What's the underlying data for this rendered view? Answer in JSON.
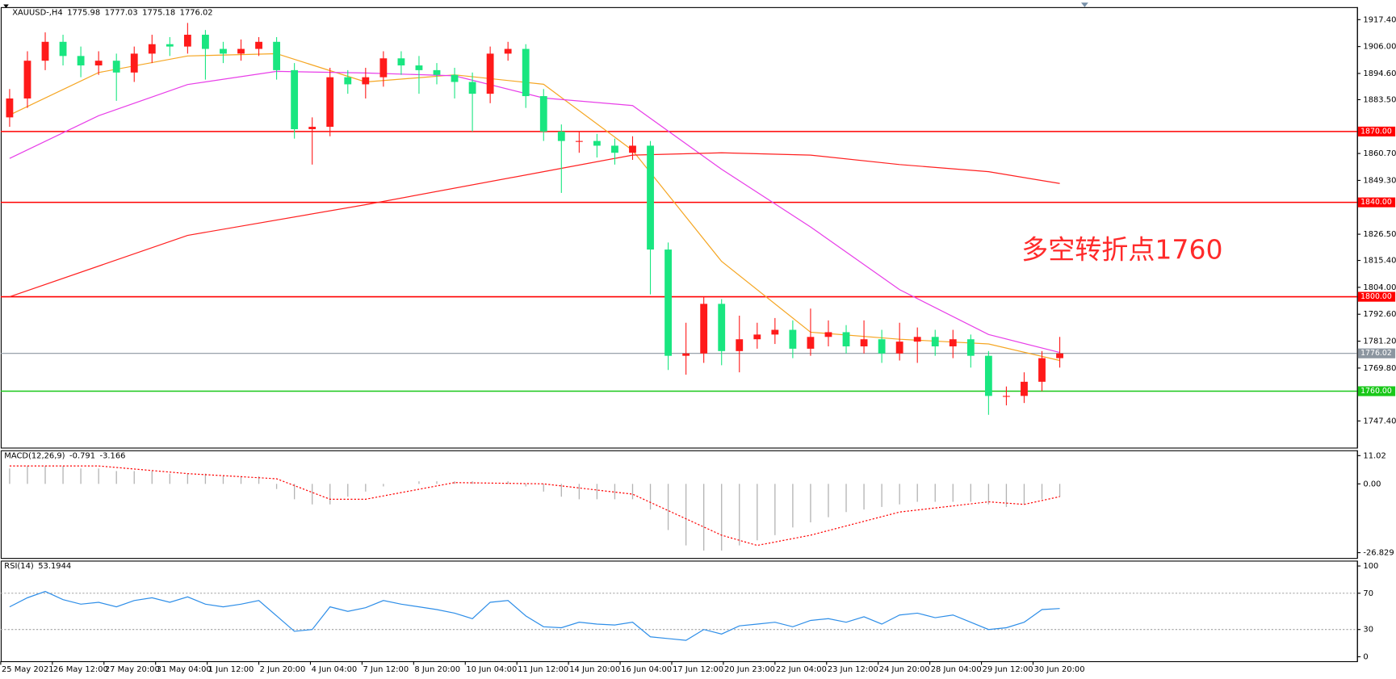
{
  "chart_data": [
    {
      "type": "candlestick",
      "title": "XAUUSD-,H4",
      "ohlc": [
        1775.98,
        1777.03,
        1775.18,
        1776.02
      ],
      "up_color": "#ff1a1a",
      "down_color": "#19e680",
      "open": [
        1876,
        1884,
        1900,
        1908,
        1902,
        1898,
        1900,
        1895,
        1903,
        1907,
        1906,
        1911,
        1905,
        1903,
        1905,
        1908,
        1896,
        1871,
        1872,
        1893,
        1890,
        1893,
        1901,
        1898,
        1896,
        1894,
        1891,
        1886,
        1903,
        1905,
        1885,
        1870,
        1866,
        1866,
        1864,
        1861,
        1864,
        1820,
        1775,
        1776,
        1797,
        1777,
        1782,
        1784,
        1786,
        1778,
        1783,
        1785,
        1779,
        1782,
        1776,
        1781,
        1783,
        1779,
        1782,
        1775,
        1758,
        1758,
        1764,
        1774
      ],
      "high": [
        1888,
        1904,
        1912,
        1911,
        1906,
        1904,
        1903,
        1906,
        1911,
        1910,
        1916,
        1913,
        1908,
        1909,
        1910,
        1910,
        1899,
        1876,
        1897,
        1896,
        1897,
        1904,
        1904,
        1902,
        1899,
        1897,
        1895,
        1906,
        1908,
        1907,
        1888,
        1873,
        1870,
        1869,
        1867,
        1868,
        1866,
        1823,
        1789,
        1800,
        1799,
        1792,
        1789,
        1791,
        1790,
        1795,
        1790,
        1788,
        1790,
        1786,
        1789,
        1787,
        1786,
        1786,
        1784,
        1777,
        1762,
        1768,
        1777,
        1783
      ],
      "low": [
        1872,
        1880,
        1896,
        1898,
        1893,
        1894,
        1883,
        1891,
        1899,
        1902,
        1903,
        1892,
        1899,
        1900,
        1902,
        1892,
        1867,
        1856,
        1868,
        1886,
        1884,
        1889,
        1894,
        1886,
        1890,
        1884,
        1870,
        1882,
        1900,
        1880,
        1866,
        1844,
        1861,
        1859,
        1856,
        1858,
        1801,
        1769,
        1767,
        1772,
        1771,
        1768,
        1778,
        1780,
        1774,
        1775,
        1779,
        1776,
        1776,
        1772,
        1773,
        1772,
        1775,
        1774,
        1770,
        1750,
        1754,
        1755,
        1760,
        1770
      ],
      "close": [
        1884,
        1900,
        1908,
        1902,
        1898,
        1900,
        1895,
        1903,
        1907,
        1906,
        1911,
        1905,
        1903,
        1905,
        1908,
        1896,
        1871,
        1872,
        1893,
        1890,
        1893,
        1901,
        1898,
        1896,
        1894,
        1891,
        1886,
        1903,
        1905,
        1885,
        1870,
        1866,
        1866,
        1864,
        1861,
        1864,
        1820,
        1775,
        1776,
        1797,
        1777,
        1782,
        1784,
        1786,
        1778,
        1783,
        1785,
        1779,
        1782,
        1776,
        1781,
        1783,
        1779,
        1782,
        1775,
        1758,
        1758,
        1764,
        1774,
        1776.02
      ],
      "series": [
        {
          "kind": "line",
          "color": "#f5a623",
          "x": [
            0,
            5,
            10,
            15,
            20,
            25,
            30,
            35,
            40,
            45,
            50,
            55,
            59
          ],
          "values": [
            1877,
            1895,
            1902,
            1903,
            1891,
            1894,
            1890,
            1862,
            1815,
            1785,
            1782,
            1780,
            1773
          ]
        },
        {
          "kind": "line",
          "color": "#e83ee8",
          "x": [
            0,
            5,
            10,
            15,
            20,
            25,
            30,
            35,
            40,
            45,
            50,
            55,
            59
          ],
          "values": [
            1858.6,
            1876.7,
            1889.9,
            1895.5,
            1894.8,
            1893.6,
            1884.2,
            1881,
            1854,
            1829.6,
            1803,
            1784,
            1776.4
          ]
        },
        {
          "kind": "line",
          "color": "#ff2020",
          "x": [
            0,
            10,
            20,
            30,
            35,
            40,
            45,
            50,
            55,
            59
          ],
          "values": [
            1800,
            1826,
            1839,
            1853,
            1860,
            1861,
            1860,
            1856,
            1853,
            1848
          ]
        }
      ],
      "levels": [
        {
          "value": 1870,
          "label": "1870.00",
          "color": "#ff0000"
        },
        {
          "value": 1840,
          "label": "1840.00",
          "color": "#ff0000"
        },
        {
          "value": 1800,
          "label": "1800.00",
          "color": "#ff0000"
        },
        {
          "value": 1760,
          "label": "1760.00",
          "color": "#19c819"
        },
        {
          "value": 1776.02,
          "label": "1776.02",
          "color": "#8c96a0"
        }
      ],
      "annotation": "多空转折点1760",
      "xlim": [
        -0.5,
        75.7
      ],
      "ylim": [
        1736.1,
        1922.7
      ],
      "yticks": [
        {
          "value": 1917.4,
          "label": "1917.40"
        },
        {
          "value": 1906,
          "label": "1906.00"
        },
        {
          "value": 1894.6,
          "label": "1894.60"
        },
        {
          "value": 1883.5,
          "label": "1883.50"
        },
        {
          "value": 1860.7,
          "label": "1860.70"
        },
        {
          "value": 1849.3,
          "label": "1849.30"
        },
        {
          "value": 1826.5,
          "label": "1826.50"
        },
        {
          "value": 1815.4,
          "label": "1815.40"
        },
        {
          "value": 1804,
          "label": "1804.00"
        },
        {
          "value": 1792.6,
          "label": "1792.60"
        },
        {
          "value": 1781.2,
          "label": "1781.20"
        },
        {
          "value": 1769.8,
          "label": "1769.80"
        },
        {
          "value": 1747.4,
          "label": "1747.40"
        }
      ],
      "xticks": [
        {
          "value": -0.5,
          "label": "25 May 2021"
        },
        {
          "value": 2.4,
          "label": "26 May 12:00"
        },
        {
          "value": 5.3,
          "label": "27 May 20:00"
        },
        {
          "value": 8.2,
          "label": "31 May 04:00"
        },
        {
          "value": 11.1,
          "label": "1 Jun 12:00"
        },
        {
          "value": 14,
          "label": "2 Jun 20:00"
        },
        {
          "value": 16.9,
          "label": "4 Jun 04:00"
        },
        {
          "value": 19.8,
          "label": "7 Jun 12:00"
        },
        {
          "value": 22.7,
          "label": "8 Jun 20:00"
        },
        {
          "value": 25.6,
          "label": "10 Jun 04:00"
        },
        {
          "value": 28.5,
          "label": "11 Jun 12:00"
        },
        {
          "value": 31.4,
          "label": "14 Jun 20:00"
        },
        {
          "value": 34.3,
          "label": "16 Jun 04:00"
        },
        {
          "value": 37.2,
          "label": "17 Jun 12:00"
        },
        {
          "value": 40.1,
          "label": "20 Jun 23:00"
        },
        {
          "value": 43,
          "label": "22 Jun 04:00"
        },
        {
          "value": 45.9,
          "label": "23 Jun 12:00"
        },
        {
          "value": 48.8,
          "label": "24 Jun 20:00"
        },
        {
          "value": 51.7,
          "label": "28 Jun 04:00"
        },
        {
          "value": 54.6,
          "label": "29 Jun 12:00"
        },
        {
          "value": 57.5,
          "label": "30 Jun 20:00"
        }
      ]
    },
    {
      "type": "macd",
      "title": "MACD(12,26,9)",
      "readings": [
        -0.791,
        -3.166
      ],
      "xlim": [
        -0.5,
        75.7
      ],
      "ylim": [
        -28.9,
        13.1
      ],
      "yticks": [
        {
          "value": 11.02,
          "label": "11.02"
        },
        {
          "value": 0,
          "label": "0.00"
        },
        -26.829
      ],
      "series": [
        {
          "kind": "histogram",
          "color": "#b4b4b4",
          "values": [
            6,
            7,
            7,
            7,
            6,
            6,
            5,
            5,
            5,
            4,
            4,
            4,
            3,
            3,
            3,
            -2,
            -6,
            -8,
            -8,
            -5,
            -3,
            -1,
            0,
            1,
            1,
            1,
            1,
            0,
            1,
            -1,
            -3,
            -5,
            -6,
            -6,
            -6,
            -6,
            -10,
            -18,
            -24,
            -26,
            -26,
            -24,
            -22,
            -20,
            -17,
            -15,
            -13,
            -11,
            -10,
            -9,
            -8,
            -7,
            -7,
            -7,
            -7,
            -8,
            -9,
            -8,
            -6,
            -5
          ]
        },
        {
          "kind": "line",
          "dash": true,
          "color": "#ff0000",
          "x": [
            0,
            5,
            10,
            15,
            18,
            20,
            25,
            30,
            35,
            40,
            42,
            45,
            50,
            55,
            57,
            59
          ],
          "values": [
            7,
            7,
            4,
            2,
            -6,
            -6,
            0.5,
            0,
            -4,
            -20,
            -24,
            -20,
            -11,
            -7,
            -8,
            -5
          ]
        }
      ]
    },
    {
      "type": "rsi",
      "title": "RSI(14)",
      "readings": [
        53.1944
      ],
      "xlim": [
        -0.5,
        75.7
      ],
      "ylim": [
        -4.9,
        105.9
      ],
      "yticks": [
        100,
        70,
        30,
        0
      ],
      "levels": [
        70,
        30
      ],
      "series": [
        {
          "kind": "line",
          "color": "#2e8ee8",
          "x": [
            0,
            1,
            2,
            3,
            4,
            5,
            6,
            7,
            8,
            9,
            10,
            11,
            12,
            13,
            14,
            15,
            16,
            17,
            18,
            19,
            20,
            21,
            22,
            23,
            24,
            25,
            26,
            27,
            28,
            29,
            30,
            31,
            32,
            33,
            34,
            35,
            36,
            37,
            38,
            39,
            40,
            41,
            42,
            43,
            44,
            45,
            46,
            47,
            48,
            49,
            50,
            51,
            52,
            53,
            54,
            55,
            56,
            57,
            58,
            59
          ],
          "values": [
            55,
            65,
            72,
            63,
            58,
            60,
            55,
            62,
            65,
            60,
            66,
            58,
            55,
            58,
            62,
            45,
            28,
            30,
            55,
            50,
            54,
            62,
            58,
            55,
            52,
            48,
            42,
            60,
            62,
            45,
            33,
            32,
            38,
            36,
            35,
            38,
            22,
            20,
            18,
            30,
            25,
            34,
            36,
            38,
            33,
            40,
            42,
            38,
            44,
            36,
            46,
            48,
            43,
            46,
            38,
            30,
            32,
            38,
            52,
            53.1944
          ]
        }
      ]
    }
  ]
}
